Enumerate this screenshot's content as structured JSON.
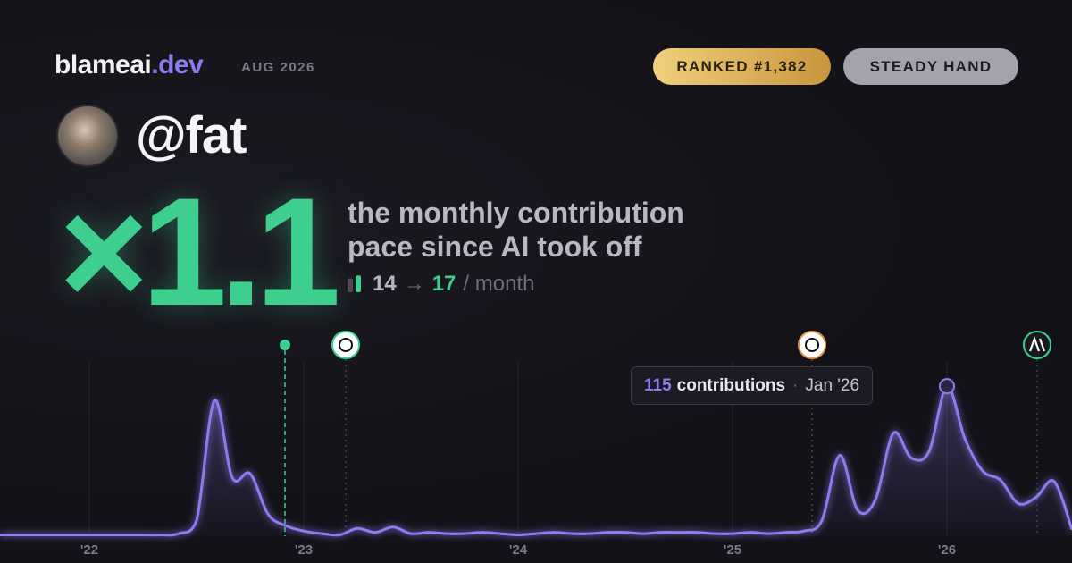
{
  "header": {
    "brand": "blameai",
    "brand_suffix": ".dev",
    "period": "AUG 2026",
    "badges": [
      "RANKED #1,382",
      "STEADY HAND"
    ],
    "handle": "@fat"
  },
  "headline": {
    "multiplier": "×1.1",
    "caption_lines": [
      "the monthly contribution",
      "pace since AI took off"
    ],
    "before": 14,
    "arrow": "→",
    "after": 17,
    "unit": "/ month",
    "colors": [
      "#4a4955",
      "#3ecf8e"
    ]
  },
  "chart_data": {
    "type": "area",
    "categories": [
      null,
      null,
      null,
      null,
      null,
      "'22",
      null,
      null,
      null,
      null,
      null,
      null,
      null,
      null,
      null,
      null,
      null,
      "'23",
      null,
      null,
      null,
      null,
      null,
      null,
      null,
      null,
      null,
      null,
      null,
      "'24",
      null,
      null,
      null,
      null,
      null,
      null,
      null,
      null,
      null,
      null,
      null,
      "'25",
      null,
      null,
      null,
      null,
      null,
      null,
      null,
      null,
      null,
      null,
      null,
      "'26",
      null,
      null,
      null,
      null,
      null,
      null,
      null
    ],
    "values": [
      1,
      1,
      1,
      1,
      1,
      1,
      1,
      1,
      1,
      1,
      2,
      12,
      104,
      45,
      48,
      17,
      8,
      4,
      2,
      1,
      6,
      3,
      7,
      2,
      3,
      2,
      2,
      3,
      2,
      1,
      2,
      3,
      2,
      2,
      3,
      3,
      2,
      3,
      3,
      3,
      2,
      2,
      3,
      2,
      3,
      4,
      12,
      62,
      20,
      28,
      79,
      60,
      65,
      115,
      75,
      50,
      43,
      25,
      30,
      42,
      5
    ],
    "color": "#8b7cf0",
    "ylim": [
      0,
      135
    ],
    "grid": true,
    "tooltip": {
      "unit": "contributions",
      "label": "Jan '26"
    }
  }
}
